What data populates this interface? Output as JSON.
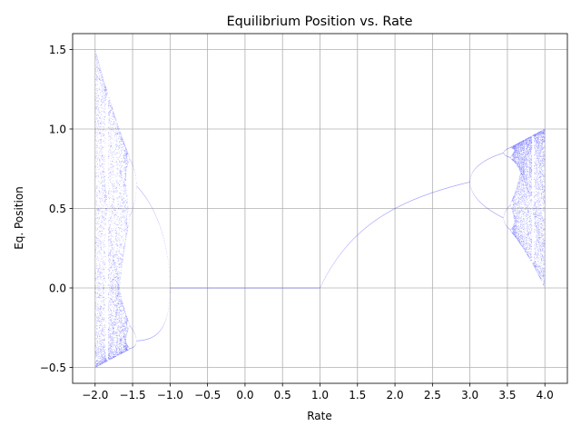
{
  "chart_data": {
    "type": "scatter",
    "title": "Equilibrium Position vs. Rate",
    "xlabel": "Rate",
    "ylabel": "Eq. Position",
    "xlim": [
      -2.3,
      4.3
    ],
    "ylim": [
      -0.6,
      1.6
    ],
    "x_ticks": [
      -2.0,
      -1.5,
      -1.0,
      -0.5,
      0.0,
      0.5,
      1.0,
      1.5,
      2.0,
      2.5,
      3.0,
      3.5,
      4.0
    ],
    "x_tick_labels": [
      "−2.0",
      "−1.5",
      "−1.0",
      "−0.5",
      "0.0",
      "0.5",
      "1.0",
      "1.5",
      "2.0",
      "2.5",
      "3.0",
      "3.5",
      "4.0"
    ],
    "y_ticks": [
      -0.5,
      0.0,
      0.5,
      1.0,
      1.5
    ],
    "y_tick_labels": [
      "−0.5",
      "0.0",
      "0.5",
      "1.0",
      "1.5"
    ],
    "grid": true,
    "marker_color": "#0000ff",
    "series": [
      {
        "map": "logistic x -> r*x*(1-x)",
        "r_range": [
          -2.0,
          4.0
        ],
        "description_points": [
          {
            "x": -2.0,
            "y_min": -0.5,
            "y_max": 1.5
          },
          {
            "x": -1.5,
            "y_min": -0.35,
            "y_max": 0.64
          },
          {
            "x": -1.0,
            "y": 0.0
          },
          {
            "x": 0.0,
            "y": 0.0
          },
          {
            "x": 1.0,
            "y": 0.0
          },
          {
            "x": 2.0,
            "y": 0.5
          },
          {
            "x": 3.0,
            "y": 0.667
          },
          {
            "x": 3.5,
            "y_min": 0.38,
            "y_max": 0.875
          },
          {
            "x": 4.0,
            "y_min": 0.0,
            "y_max": 1.0
          }
        ]
      }
    ]
  }
}
